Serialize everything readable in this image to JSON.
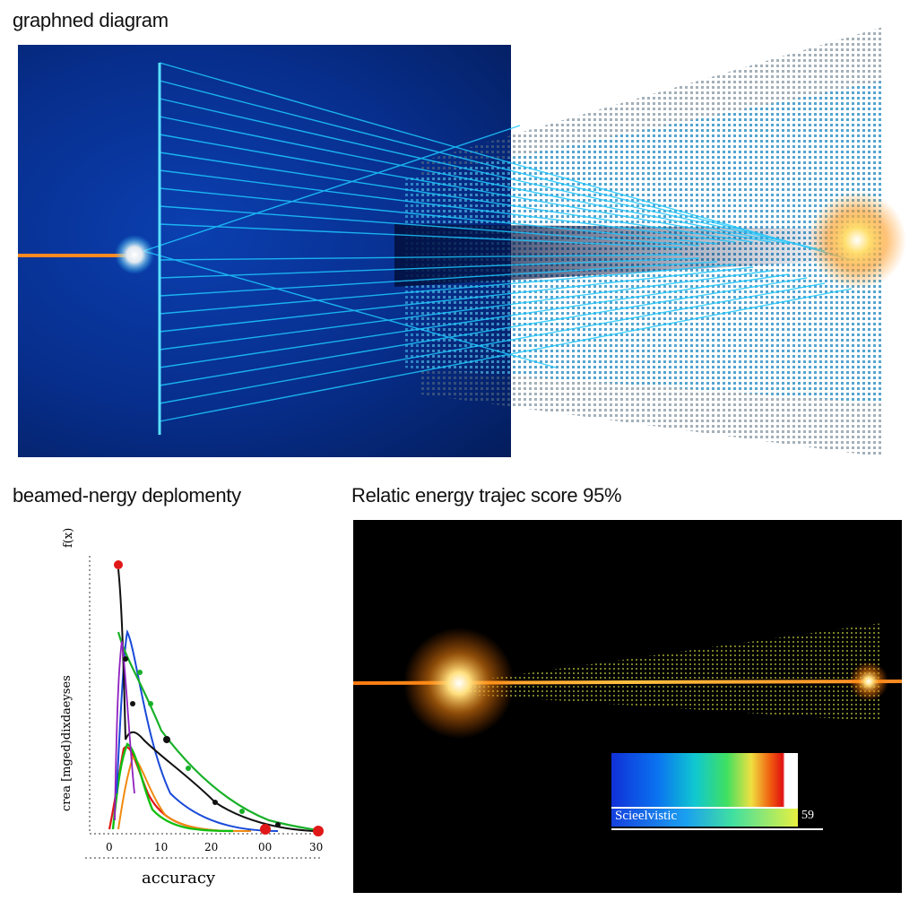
{
  "titles": {
    "top": "graphned diagram",
    "left": "beamed-nergy deplomenty",
    "right": "Relatic energy trajec score 95%"
  },
  "chart": {
    "y_label": "crea [mged)dixdaeyses",
    "y_top_label": "f(x)",
    "x_label": "accuracy",
    "x_ticks": [
      "0",
      "10",
      "20",
      "00",
      "30"
    ]
  },
  "heatmap": {
    "label": "Scieelvistic",
    "value": "59"
  },
  "colors": {
    "beam_blue": "#1ec8ff",
    "beam_orange": "#ff8a20",
    "panel_blue": "#072e8c"
  }
}
